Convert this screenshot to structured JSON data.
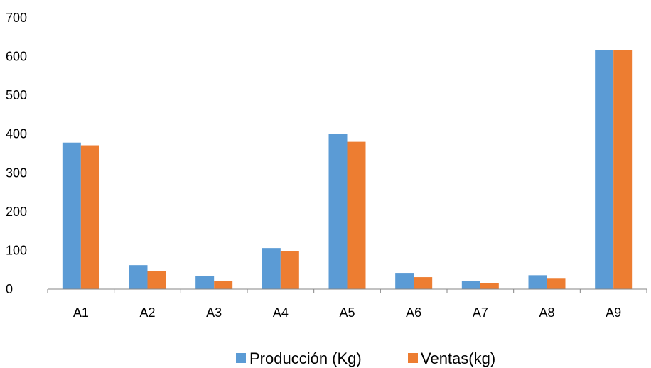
{
  "chart_data": {
    "type": "bar",
    "categories": [
      "A1",
      "A2",
      "A3",
      "A4",
      "A5",
      "A6",
      "A7",
      "A8",
      "A9"
    ],
    "series": [
      {
        "name": "Producción (Kg)",
        "color": "#5B9BD5",
        "values": [
          378,
          62,
          33,
          106,
          401,
          42,
          22,
          36,
          616
        ]
      },
      {
        "name": "Ventas(kg)",
        "color": "#ED7D31",
        "values": [
          371,
          47,
          22,
          98,
          380,
          31,
          16,
          27,
          616
        ]
      }
    ],
    "ylim": [
      0,
      700
    ],
    "yticks": [
      0,
      100,
      200,
      300,
      400,
      500,
      600,
      700
    ],
    "grid": false,
    "legend_position": "bottom"
  }
}
